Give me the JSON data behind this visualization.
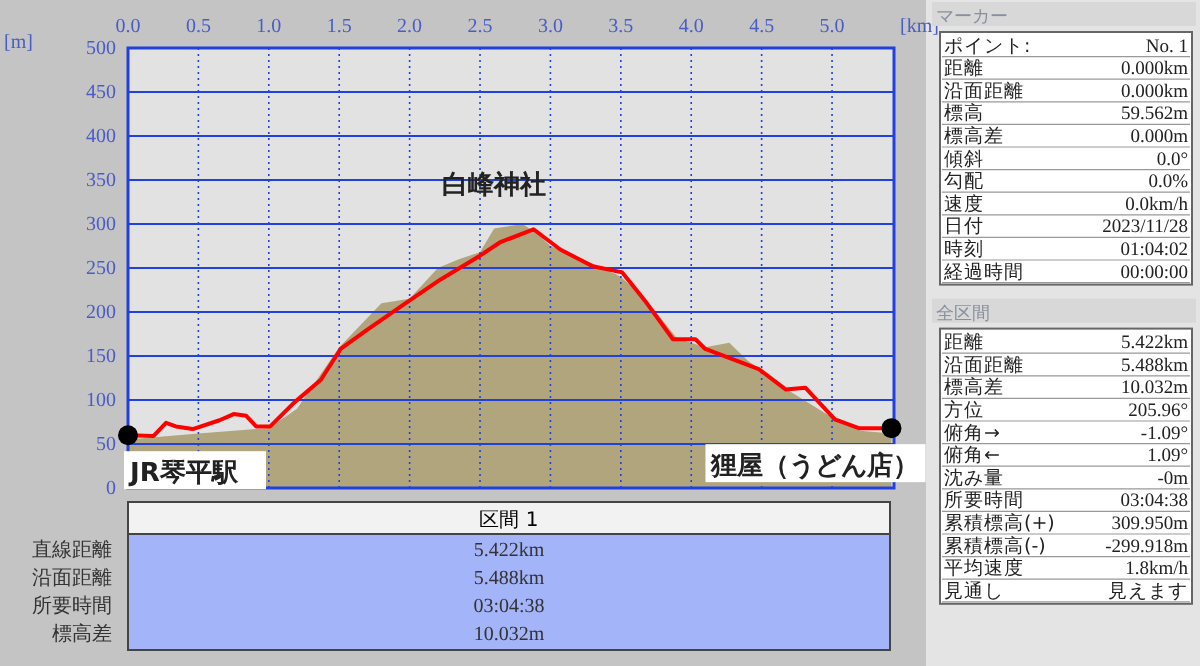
{
  "chart_data": [
    {
      "type": "line",
      "xlabel": "[km]",
      "ylabel": "[m]",
      "xlim": [
        0,
        5.44
      ],
      "ylim": [
        0,
        500
      ],
      "xticks": [
        {
          "value": 0,
          "label": "0.0"
        },
        {
          "value": 0.5,
          "label": "0.5"
        },
        {
          "value": 1,
          "label": "1.0"
        },
        {
          "value": 1.5,
          "label": "1.5"
        },
        {
          "value": 2,
          "label": "2.0"
        },
        {
          "value": 2.5,
          "label": "2.5"
        },
        {
          "value": 3,
          "label": "3.0"
        },
        {
          "value": 3.5,
          "label": "3.5"
        },
        {
          "value": 4,
          "label": "4.0"
        },
        {
          "value": 4.5,
          "label": "4.5"
        },
        {
          "value": 5,
          "label": "5.0"
        }
      ],
      "yticks": [
        0,
        50,
        100,
        150,
        200,
        250,
        300,
        350,
        400,
        450,
        500
      ],
      "grid": true,
      "series": [
        {
          "type": "area",
          "color": "#a89a6c",
          "x": [
            0,
            0.5,
            1.0,
            1.2,
            1.5,
            1.8,
            2.0,
            2.2,
            2.35,
            2.5,
            2.6,
            2.8,
            2.9,
            3.0,
            3.3,
            3.5,
            3.7,
            3.9,
            4.1,
            4.27,
            4.4,
            4.7,
            5.0,
            5.2,
            5.422
          ],
          "values": [
            55,
            62,
            68,
            90,
            160,
            210,
            215,
            250,
            260,
            268,
            295,
            300,
            290,
            275,
            255,
            240,
            210,
            170,
            160,
            165,
            145,
            110,
            80,
            65,
            62
          ]
        },
        {
          "type": "line",
          "color": "#ff0000",
          "line_style": "solid",
          "x": [
            0,
            0.18,
            0.27,
            0.34,
            0.46,
            0.65,
            0.75,
            0.84,
            0.91,
            1.01,
            1.18,
            1.37,
            1.51,
            1.7,
            1.98,
            2.22,
            2.5,
            2.64,
            2.88,
            3.07,
            3.3,
            3.51,
            3.68,
            3.87,
            4.03,
            4.1,
            4.48,
            4.67,
            4.81,
            5.02,
            5.19,
            5.422
          ],
          "values": [
            60,
            59,
            74,
            70,
            67,
            77,
            84,
            82,
            70,
            70,
            97,
            123,
            158,
            180,
            211,
            237,
            264,
            279,
            294,
            271,
            252,
            245,
            211,
            169,
            169,
            158,
            135,
            112,
            114,
            78,
            68,
            68
          ]
        },
        {
          "type": "scatter",
          "color": "#000000",
          "marker": "circle",
          "x": [
            0,
            5.422
          ],
          "values": [
            60,
            68
          ]
        }
      ],
      "annotations": [
        {
          "text": "白峰神社",
          "x": 2.88,
          "y": 294
        },
        {
          "text": "JR琴平駅",
          "x": 0,
          "y": 60
        },
        {
          "text": "狸屋（うどん店）",
          "x": 5.422,
          "y": 68
        }
      ]
    },
    {
      "type": "other",
      "title": "区間 1",
      "annotations": [
        "直線距離",
        "5.422km",
        "沿面距離",
        "5.488km",
        "所要時間",
        "03:04:38",
        "標高差",
        "10.032m"
      ]
    },
    {
      "type": "other",
      "title": "マーカー",
      "annotations": [
        "ポイント:",
        "No. 1",
        "距離",
        "0.000km",
        "沿面距離",
        "0.000km",
        "標高",
        "59.562m",
        "標高差",
        "0.000m",
        "傾斜",
        "0.0°",
        "勾配",
        "0.0%",
        "速度",
        "0.0km/h",
        "日付",
        "2023/11/28",
        "時刻",
        "01:04:02",
        "経過時間",
        "00:00:00"
      ]
    },
    {
      "type": "other",
      "title": "全区間",
      "annotations": [
        "距離",
        "5.422km",
        "沿面距離",
        "5.488km",
        "標高差",
        "10.032m",
        "方位",
        "205.96°",
        "俯角→",
        "-1.09°",
        "俯角←",
        "1.09°",
        "沈み量",
        "-0m",
        "所要時間",
        "03:04:38",
        "累積標高(+)",
        "309.950m",
        "累積標高(-)",
        "-299.918m",
        "平均速度",
        "1.8km/h",
        "見通し",
        "見えます"
      ]
    }
  ]
}
